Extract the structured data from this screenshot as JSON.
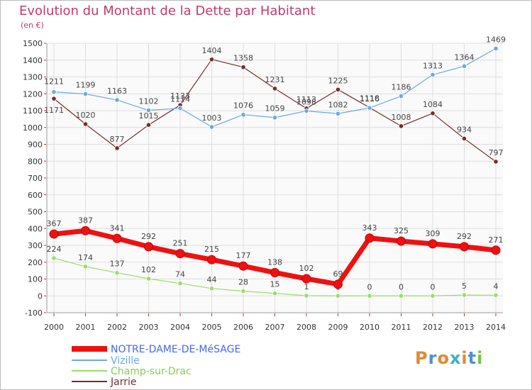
{
  "title": "Evolution du Montant de la Dette par Habitant",
  "unit": "(en €)",
  "logo": {
    "text": "Proxiti",
    "colors": [
      "#e6882b",
      "#4a90d9",
      "#e6882b",
      "#3fb0c0",
      "#e6882b",
      "#4a90d9",
      "#7ac142"
    ]
  },
  "chart_data": {
    "type": "line",
    "x": [
      "2000",
      "2001",
      "2002",
      "2003",
      "2004",
      "2005",
      "2006",
      "2007",
      "2008",
      "2009",
      "2010",
      "2011",
      "2012",
      "2013",
      "2014"
    ],
    "ylim": [
      -100,
      1500
    ],
    "yticks": [
      -100,
      0,
      100,
      200,
      300,
      400,
      500,
      600,
      700,
      800,
      900,
      1000,
      1100,
      1200,
      1300,
      1400,
      1500
    ],
    "grid": true,
    "legend_position": "bottom-left",
    "series": [
      {
        "name": "NOTRE-DAME-DE-MéSAGE",
        "color": "#ee1111",
        "legend_color": "#4466ee",
        "values": [
          367,
          387,
          341,
          292,
          251,
          215,
          177,
          138,
          102,
          69,
          343,
          325,
          309,
          292,
          271
        ]
      },
      {
        "name": "Vizille",
        "color": "#6aaae0",
        "legend_color": "#6aaae0",
        "values": [
          1211,
          1199,
          1163,
          1102,
          1114,
          1003,
          1076,
          1059,
          1098,
          1082,
          1116,
          1186,
          1313,
          1364,
          1469
        ]
      },
      {
        "name": "Champ-sur-Drac",
        "color": "#99dd66",
        "legend_color": "#88cc55",
        "values": [
          224,
          174,
          137,
          102,
          74,
          44,
          28,
          15,
          1,
          0,
          0,
          0,
          0,
          5,
          4
        ]
      },
      {
        "name": "Jarrie",
        "color": "#7a2a2a",
        "legend_color": "#7a2a2a",
        "values": [
          1171,
          1020,
          877,
          1015,
          1133,
          1404,
          1358,
          1231,
          1113,
          1225,
          1118,
          1008,
          1084,
          934,
          797
        ]
      }
    ]
  }
}
